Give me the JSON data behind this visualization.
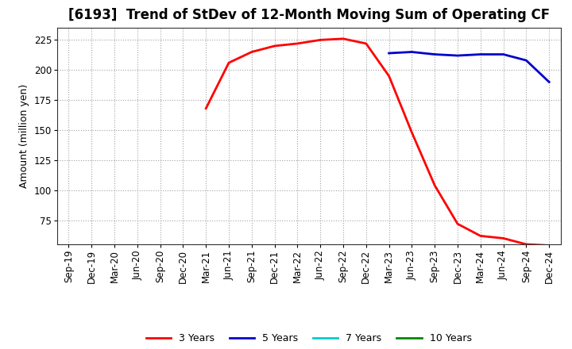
{
  "title": "[6193]  Trend of StDev of 12-Month Moving Sum of Operating CF",
  "ylabel": "Amount (million yen)",
  "x_labels": [
    "Sep-19",
    "Dec-19",
    "Mar-20",
    "Jun-20",
    "Sep-20",
    "Dec-20",
    "Mar-21",
    "Jun-21",
    "Sep-21",
    "Dec-21",
    "Mar-22",
    "Jun-22",
    "Sep-22",
    "Dec-22",
    "Mar-23",
    "Jun-23",
    "Sep-23",
    "Dec-23",
    "Mar-24",
    "Jun-24",
    "Sep-24",
    "Dec-24"
  ],
  "ylim": [
    55,
    235
  ],
  "yticks": [
    75,
    100,
    125,
    150,
    175,
    200,
    225
  ],
  "series_3y": {
    "color": "#FF0000",
    "label": "3 Years",
    "x_indices": [
      6,
      7,
      8,
      9,
      10,
      11,
      12,
      13,
      14,
      15,
      16,
      17,
      18,
      19,
      20,
      21
    ],
    "values": [
      168,
      206,
      215,
      220,
      222,
      225,
      226,
      222,
      195,
      148,
      104,
      72,
      62,
      60,
      55,
      54
    ]
  },
  "series_5y": {
    "color": "#0000CC",
    "label": "5 Years",
    "x_indices": [
      14,
      15,
      16,
      17,
      18,
      19,
      20,
      21
    ],
    "values": [
      214,
      215,
      213,
      212,
      213,
      213,
      208,
      190
    ]
  },
  "series_7y": {
    "color": "#00CCCC",
    "label": "7 Years",
    "x_indices": [],
    "values": []
  },
  "series_10y": {
    "color": "#008800",
    "label": "10 Years",
    "x_indices": [],
    "values": []
  },
  "background_color": "#FFFFFF",
  "plot_bg_color": "#FFFFFF",
  "grid_color": "#999999",
  "title_fontsize": 12,
  "label_fontsize": 9,
  "tick_fontsize": 8.5
}
